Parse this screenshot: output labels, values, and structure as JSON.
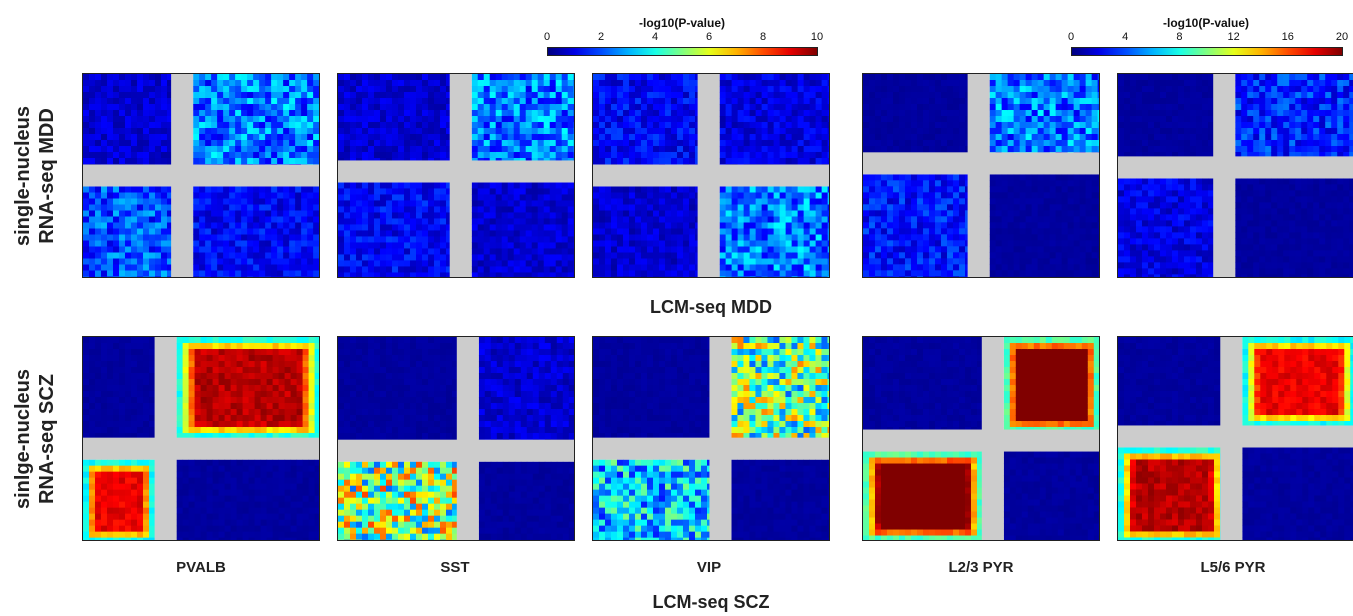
{
  "colorbars": [
    {
      "title": "-log10(P-value)",
      "ticks": [
        "0",
        "2",
        "4",
        "6",
        "8",
        "10"
      ],
      "min": 0,
      "max": 10
    },
    {
      "title": "-log10(P-value)",
      "ticks": [
        "0",
        "4",
        "8",
        "12",
        "16",
        "20"
      ],
      "min": 0,
      "max": 20
    }
  ],
  "row_labels": [
    "single-nucleus\nRNA-seq MDD",
    "sinlge-nucleus\nRNA-seq SCZ"
  ],
  "axis_titles": {
    "middle": "LCM-seq MDD",
    "bottom": "LCM-seq SCZ"
  },
  "columns": [
    "PVALB",
    "SST",
    "VIP",
    "L2/3 PYR",
    "L5/6 PYR"
  ],
  "colors": {
    "gap": "#cccccc",
    "low": "#00008b",
    "high": "#8b0000"
  },
  "chart_data": {
    "type": "heatmap",
    "description_keys": "Rank-rank hypergeometric overlap maps; quadrants valued on -log10(P-value) scale",
    "panels": [
      {
        "row": "MDD",
        "column": "PVALB",
        "cross": [
          0.42,
          0.5
        ],
        "quadrants": {
          "tl": 1.0,
          "tr": 3.0,
          "bl": 2.5,
          "br": 1.5
        }
      },
      {
        "row": "MDD",
        "column": "SST",
        "cross": [
          0.52,
          0.48
        ],
        "quadrants": {
          "tl": 1.0,
          "tr": 3.0,
          "bl": 1.5,
          "br": 1.0
        }
      },
      {
        "row": "MDD",
        "column": "VIP",
        "cross": [
          0.49,
          0.5
        ],
        "quadrants": {
          "tl": 1.5,
          "tr": 1.2,
          "bl": 1.0,
          "br": 3.0
        }
      },
      {
        "row": "MDD",
        "column": "L2/3 PYR",
        "cross": [
          0.49,
          0.44
        ],
        "quadrants": {
          "tl": 0.0,
          "tr": 6.0,
          "bl": 3.5,
          "br": 0.0
        }
      },
      {
        "row": "MDD",
        "column": "L5/6 PYR",
        "cross": [
          0.45,
          0.46
        ],
        "quadrants": {
          "tl": 0.0,
          "tr": 4.0,
          "bl": 2.5,
          "br": 0.0
        }
      },
      {
        "row": "SCZ",
        "column": "PVALB",
        "cross": [
          0.35,
          0.55
        ],
        "quadrants": {
          "tl": 0.0,
          "tr": 18.0,
          "bl": 17.0,
          "br": 0.0
        }
      },
      {
        "row": "SCZ",
        "column": "SST",
        "cross": [
          0.55,
          0.56
        ],
        "quadrants": {
          "tl": 0.0,
          "tr": 2.0,
          "bl": 13.0,
          "br": 0.0
        }
      },
      {
        "row": "SCZ",
        "column": "VIP",
        "cross": [
          0.54,
          0.55
        ],
        "quadrants": {
          "tl": 0.0,
          "tr": 12.0,
          "bl": 8.0,
          "br": 0.0
        }
      },
      {
        "row": "SCZ",
        "column": "L2/3 PYR",
        "cross": [
          0.55,
          0.51
        ],
        "quadrants": {
          "tl": 0.0,
          "tr": 20.0,
          "bl": 20.0,
          "br": 0.0
        }
      },
      {
        "row": "SCZ",
        "column": "L5/6 PYR",
        "cross": [
          0.48,
          0.49
        ],
        "quadrants": {
          "tl": 0.0,
          "tr": 17.0,
          "bl": 18.0,
          "br": 0.0
        }
      }
    ]
  }
}
